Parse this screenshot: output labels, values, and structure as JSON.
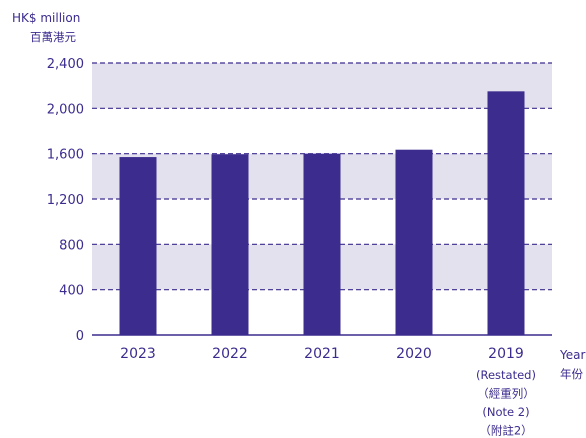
{
  "chart_data": {
    "type": "bar",
    "unit_label": [
      "HK$ million",
      "百萬港元"
    ],
    "axis_title_x": [
      "Year",
      "年份"
    ],
    "categories": [
      {
        "year": "2023",
        "notes": []
      },
      {
        "year": "2022",
        "notes": []
      },
      {
        "year": "2021",
        "notes": []
      },
      {
        "year": "2020",
        "notes": []
      },
      {
        "year": "2019",
        "notes": [
          "(Restated)",
          "（經重列）",
          "(Note 2)",
          "（附註2）"
        ]
      }
    ],
    "values": [
      1570,
      1595,
      1600,
      1635,
      2150
    ],
    "y_ticks": [
      "0",
      "400",
      "800",
      "1,200",
      "1,600",
      "2,000",
      "2,400"
    ],
    "ylim": [
      0,
      2400
    ],
    "grid": "dashed horizontal lines with alternating shaded bands",
    "colors": {
      "bar": "#3b2c8e",
      "band": "#e4e1ef",
      "grid": "#3b2c8e",
      "text": "#3b2c8e"
    }
  }
}
